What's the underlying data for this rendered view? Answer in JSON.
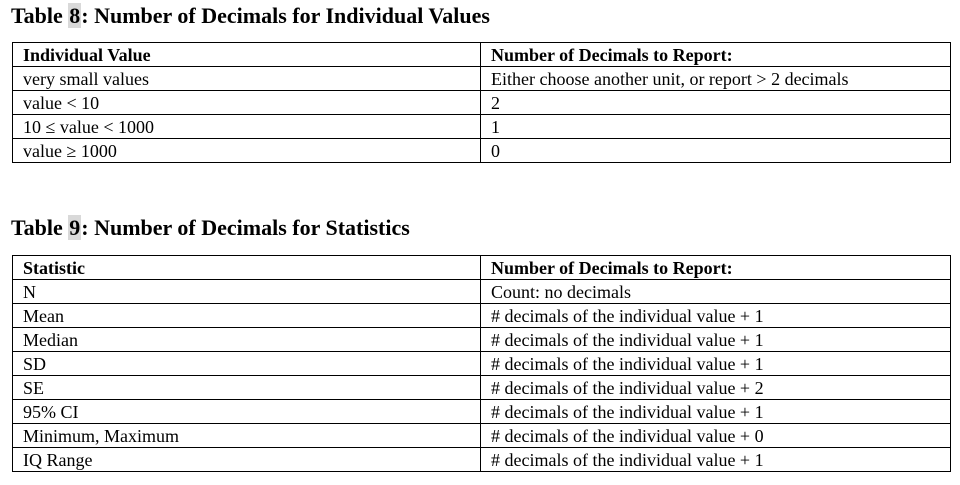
{
  "table8": {
    "caption_prefix": "Table ",
    "caption_number": "8",
    "caption_suffix": ": Number of Decimals for Individual Values",
    "headers": [
      "Individual Value",
      "Number of Decimals to Report:"
    ],
    "rows": [
      [
        "very small values",
        "Either choose another unit, or report > 2 decimals"
      ],
      [
        "value < 10",
        "2"
      ],
      [
        "10 ≤ value < 1000",
        "1"
      ],
      [
        "value ≥ 1000",
        "0"
      ]
    ]
  },
  "table9": {
    "caption_prefix": "Table ",
    "caption_number": "9",
    "caption_suffix": ": Number of Decimals for Statistics",
    "headers": [
      "Statistic",
      "Number of Decimals to Report:"
    ],
    "rows": [
      [
        "N",
        "Count: no decimals"
      ],
      [
        "Mean",
        "# decimals of the individual value + 1"
      ],
      [
        "Median",
        "# decimals of the individual value + 1"
      ],
      [
        "SD",
        "# decimals of the individual value + 1"
      ],
      [
        "SE",
        "# decimals of the individual value + 2"
      ],
      [
        "95% CI",
        "# decimals of the individual value + 1"
      ],
      [
        "Minimum, Maximum",
        "# decimals of the individual value + 0"
      ],
      [
        "IQ Range",
        "# decimals of the individual value + 1"
      ]
    ]
  }
}
